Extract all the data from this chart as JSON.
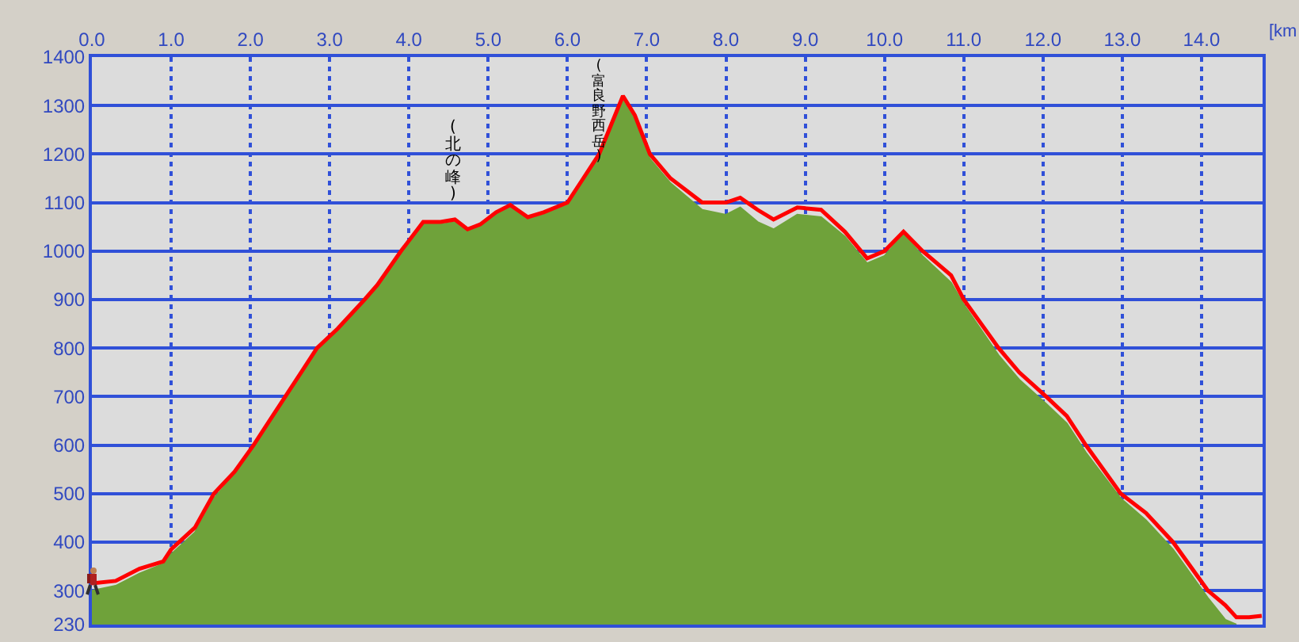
{
  "chart_data": {
    "type": "line",
    "xlabel": "[km",
    "x": [
      0,
      0.3,
      0.6,
      0.9,
      1.0,
      1.3,
      1.54,
      1.8,
      2.04,
      2.24,
      2.44,
      2.64,
      2.84,
      3.1,
      3.44,
      3.6,
      3.9,
      4.18,
      4.4,
      4.58,
      4.74,
      4.9,
      5.1,
      5.28,
      5.5,
      5.7,
      6.0,
      6.2,
      6.4,
      6.55,
      6.7,
      6.85,
      7.04,
      7.3,
      7.7,
      8.0,
      8.18,
      8.4,
      8.6,
      8.9,
      9.2,
      9.5,
      9.78,
      10.0,
      10.24,
      10.48,
      10.84,
      11.0,
      11.44,
      11.7,
      12.04,
      12.3,
      12.54,
      12.98,
      13.3,
      13.64,
      14.08,
      14.3,
      14.44,
      14.6,
      14.76
    ],
    "series": [
      {
        "type": "area",
        "color": "#6fa23a",
        "values": [
          300,
          310,
          335,
          355,
          375,
          420,
          490,
          540,
          595,
          645,
          695,
          745,
          795,
          835,
          895,
          925,
          995,
          1055,
          1055,
          1060,
          1040,
          1050,
          1075,
          1090,
          1065,
          1075,
          1095,
          1145,
          1195,
          1255,
          1310,
          1270,
          1190,
          1140,
          1085,
          1075,
          1090,
          1060,
          1045,
          1075,
          1070,
          1030,
          975,
          990,
          1035,
          990,
          935,
          890,
          785,
          735,
          685,
          645,
          585,
          490,
          445,
          385,
          285,
          240,
          230,
          null,
          null
        ]
      },
      {
        "color": "#ff0000",
        "values": [
          315,
          320,
          345,
          360,
          385,
          430,
          500,
          545,
          600,
          650,
          700,
          750,
          800,
          840,
          900,
          930,
          1000,
          1060,
          1060,
          1065,
          1045,
          1055,
          1080,
          1095,
          1070,
          1080,
          1100,
          1150,
          1200,
          1260,
          1320,
          1280,
          1200,
          1150,
          1100,
          1100,
          1110,
          1085,
          1065,
          1090,
          1085,
          1040,
          985,
          1000,
          1040,
          1000,
          950,
          900,
          800,
          750,
          700,
          660,
          600,
          500,
          460,
          400,
          300,
          270,
          245,
          245,
          248
        ]
      }
    ],
    "xlim": [
      0,
      14.77
    ],
    "xticks": [
      {
        "value": 0,
        "label": "0.0"
      },
      {
        "value": 1,
        "label": "1.0"
      },
      {
        "value": 2,
        "label": "2.0"
      },
      {
        "value": 3,
        "label": "3.0"
      },
      {
        "value": 4,
        "label": "4.0"
      },
      {
        "value": 5,
        "label": "5.0"
      },
      {
        "value": 6,
        "label": "6.0"
      },
      {
        "value": 7,
        "label": "7.0"
      },
      {
        "value": 8,
        "label": "8.0"
      },
      {
        "value": 9,
        "label": "9.0"
      },
      {
        "value": 10,
        "label": "10.0"
      },
      {
        "value": 11,
        "label": "11.0"
      },
      {
        "value": 12,
        "label": "12.0"
      },
      {
        "value": 13,
        "label": "13.0"
      },
      {
        "value": 14,
        "label": "14.0"
      }
    ],
    "ylim": [
      230,
      1400
    ],
    "yticks": [
      230,
      300,
      400,
      500,
      600,
      700,
      800,
      900,
      1000,
      1100,
      1200,
      1300,
      1400
    ],
    "grid": true,
    "legend": false,
    "marker": "none",
    "line_style": "solid",
    "annotations": [
      "(北の峰)",
      "(富良野西岳)"
    ]
  }
}
